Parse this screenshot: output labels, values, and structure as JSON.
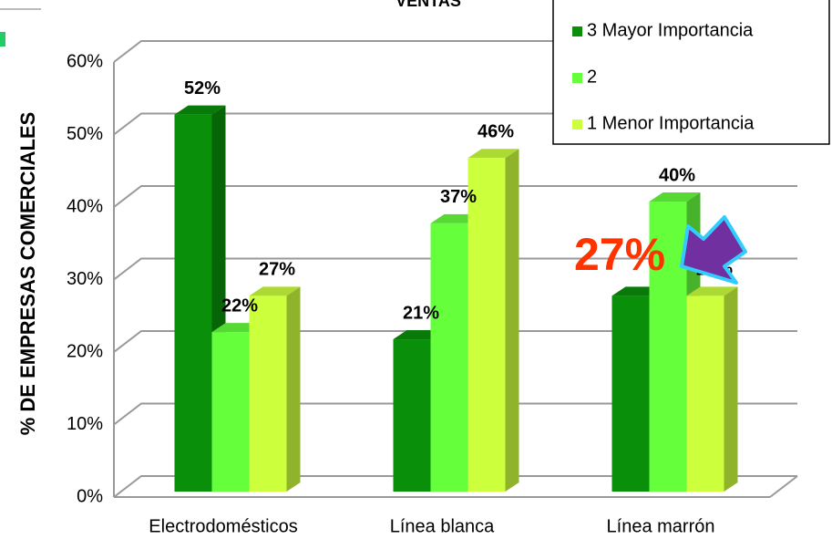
{
  "chart_data": {
    "type": "bar3d",
    "title": "VENTAS",
    "y_axis_label": "% DE EMPRESAS COMERCIALES",
    "categories": [
      "Electrodomésticos",
      "Línea blanca",
      "Línea marrón"
    ],
    "series": [
      {
        "name": "3 Mayor Importancia",
        "color": "#0a8f0a",
        "values": [
          52,
          21,
          27
        ],
        "value_labels": [
          "52%",
          "21%",
          null
        ]
      },
      {
        "name": "2",
        "color": "#66ff3c",
        "values": [
          22,
          37,
          40
        ],
        "value_labels": [
          "22%",
          "37%",
          "40%"
        ]
      },
      {
        "name": "1 Menor Importancia",
        "color": "#ccff3c",
        "values": [
          27,
          46,
          27
        ],
        "value_labels": [
          "27%",
          "46%",
          "27%"
        ]
      }
    ],
    "ylim": [
      0,
      60
    ],
    "yticks": [
      {
        "value": 0,
        "label": "0%"
      },
      {
        "value": 10,
        "label": "10%"
      },
      {
        "value": 20,
        "label": "20%"
      },
      {
        "value": 30,
        "label": "30%"
      },
      {
        "value": 40,
        "label": "40%"
      },
      {
        "value": 50,
        "label": "50%"
      },
      {
        "value": 60,
        "label": "60%"
      }
    ],
    "grid": true,
    "legend": "top-right",
    "annotation": "27%"
  }
}
